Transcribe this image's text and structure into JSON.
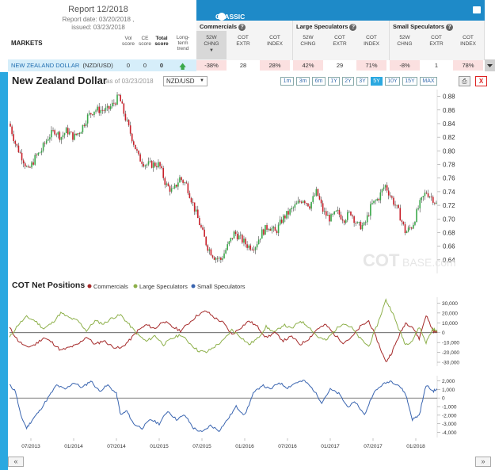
{
  "report": {
    "title": "Report 12/2018",
    "report_date": "Report date: 03/20/2018 ,",
    "issued": "issued: 03/23/2018"
  },
  "table": {
    "markets_label": "MARKETS",
    "left_columns": [
      {
        "line1": "Vol",
        "line2": "score",
        "bold": false
      },
      {
        "line1": "CE",
        "line2": "score",
        "bold": false
      },
      {
        "line1": "Total",
        "line2": "score",
        "bold": true
      },
      {
        "line1": "Long-",
        "line2": "term",
        "line3": "trend",
        "bold": false
      }
    ],
    "header_title": "CLASSIC DATA – FUTURES ONLY",
    "groups": [
      {
        "label": "Commercials",
        "columns": [
          {
            "line1": "52W",
            "line2": "CHNG"
          },
          {
            "line1": "COT",
            "line2": "EXTR"
          },
          {
            "line1": "COT",
            "line2": "INDEX"
          }
        ]
      },
      {
        "label": "Large Speculators",
        "columns": [
          {
            "line1": "52W",
            "line2": "CHNG"
          },
          {
            "line1": "COT",
            "line2": "EXTR"
          },
          {
            "line1": "COT",
            "line2": "INDEX"
          }
        ]
      },
      {
        "label": "Small Speculators",
        "columns": [
          {
            "line1": "52W",
            "line2": "CHNG"
          },
          {
            "line1": "COT",
            "line2": "EXTR"
          },
          {
            "line1": "COT",
            "line2": "INDEX"
          }
        ]
      }
    ],
    "row": {
      "name": "NEW ZEALAND DOLLAR",
      "symbol": "(NZD/USD)",
      "vol_score": "0",
      "ce_score": "0",
      "total_score": "0",
      "values": [
        "-38%",
        "28",
        "28%",
        "42%",
        "29",
        "71%",
        "-8%",
        "1",
        "78%"
      ]
    }
  },
  "chart_header": {
    "title": "New Zealand Dollar",
    "as_of": "as of 03/23/2018",
    "pair": "NZD/USD",
    "ranges": [
      "1m",
      "3m",
      "6m",
      "1Y",
      "2Y",
      "3Y",
      "5Y",
      "10Y",
      "15Y",
      "MAX"
    ],
    "active_range": "5Y",
    "close_label": "X"
  },
  "watermark": {
    "bold": "COT",
    "light": "BASE",
    "suffix": ".com"
  },
  "cot_title": "COT Net Positions",
  "legend": [
    "Commercials",
    "Large Speculators",
    "Small Speculators"
  ],
  "colors": {
    "up": "#3aa84a",
    "down": "#c8202a",
    "commercials": "#a52a2a",
    "large": "#8db04a",
    "small": "#3a65b0",
    "accent": "#2aa8e0"
  },
  "nav": {
    "prev": "«",
    "next": "»"
  },
  "chart_data": [
    {
      "type": "candlestick",
      "title": "New Zealand Dollar",
      "x_labels": [
        "07/2013",
        "01/2014",
        "07/2014",
        "01/2015",
        "07/2015",
        "01/2016",
        "07/2016",
        "01/2017",
        "07/2017",
        "01/2018"
      ],
      "x_range": [
        2013.25,
        2018.25
      ],
      "ylim": [
        0.62,
        0.89
      ],
      "yticks": [
        0.64,
        0.66,
        0.68,
        0.7,
        0.72,
        0.74,
        0.76,
        0.78,
        0.8,
        0.82,
        0.84,
        0.86,
        0.88
      ],
      "close_series": [
        [
          2013.25,
          0.84
        ],
        [
          2013.32,
          0.81
        ],
        [
          2013.4,
          0.79
        ],
        [
          2013.47,
          0.77
        ],
        [
          2013.55,
          0.79
        ],
        [
          2013.62,
          0.8
        ],
        [
          2013.7,
          0.82
        ],
        [
          2013.78,
          0.83
        ],
        [
          2013.85,
          0.82
        ],
        [
          2013.92,
          0.83
        ],
        [
          2014.0,
          0.82
        ],
        [
          2014.08,
          0.83
        ],
        [
          2014.16,
          0.85
        ],
        [
          2014.24,
          0.86
        ],
        [
          2014.32,
          0.86
        ],
        [
          2014.4,
          0.86
        ],
        [
          2014.47,
          0.87
        ],
        [
          2014.53,
          0.88
        ],
        [
          2014.6,
          0.85
        ],
        [
          2014.68,
          0.82
        ],
        [
          2014.76,
          0.79
        ],
        [
          2014.84,
          0.78
        ],
        [
          2014.92,
          0.78
        ],
        [
          2015.0,
          0.78
        ],
        [
          2015.08,
          0.75
        ],
        [
          2015.16,
          0.74
        ],
        [
          2015.24,
          0.76
        ],
        [
          2015.32,
          0.75
        ],
        [
          2015.4,
          0.72
        ],
        [
          2015.48,
          0.69
        ],
        [
          2015.56,
          0.66
        ],
        [
          2015.64,
          0.645
        ],
        [
          2015.72,
          0.64
        ],
        [
          2015.8,
          0.66
        ],
        [
          2015.88,
          0.68
        ],
        [
          2015.96,
          0.67
        ],
        [
          2016.04,
          0.66
        ],
        [
          2016.12,
          0.66
        ],
        [
          2016.2,
          0.68
        ],
        [
          2016.28,
          0.69
        ],
        [
          2016.36,
          0.68
        ],
        [
          2016.44,
          0.7
        ],
        [
          2016.52,
          0.71
        ],
        [
          2016.6,
          0.72
        ],
        [
          2016.68,
          0.73
        ],
        [
          2016.76,
          0.72
        ],
        [
          2016.84,
          0.74
        ],
        [
          2016.92,
          0.71
        ],
        [
          2017.0,
          0.7
        ],
        [
          2017.08,
          0.71
        ],
        [
          2017.16,
          0.7
        ],
        [
          2017.24,
          0.71
        ],
        [
          2017.32,
          0.69
        ],
        [
          2017.4,
          0.69
        ],
        [
          2017.48,
          0.72
        ],
        [
          2017.56,
          0.73
        ],
        [
          2017.64,
          0.75
        ],
        [
          2017.72,
          0.73
        ],
        [
          2017.8,
          0.71
        ],
        [
          2017.88,
          0.68
        ],
        [
          2017.96,
          0.69
        ],
        [
          2018.04,
          0.72
        ],
        [
          2018.12,
          0.74
        ],
        [
          2018.2,
          0.73
        ],
        [
          2018.25,
          0.72
        ]
      ]
    },
    {
      "type": "line",
      "title": "COT Net Positions",
      "ylim": [
        -34000,
        36000
      ],
      "yticks": [
        30000,
        20000,
        10000,
        0,
        -10000,
        -20000,
        -30000
      ],
      "ytick_labels": [
        "30,000",
        "20,000",
        "10,000",
        "0",
        "-10,000",
        "-20,000",
        "-30,000"
      ],
      "series": [
        {
          "name": "Commercials",
          "points": [
            [
              2013.25,
              5000
            ],
            [
              2013.35,
              -8000
            ],
            [
              2013.45,
              -15000
            ],
            [
              2013.55,
              -12000
            ],
            [
              2013.65,
              -5000
            ],
            [
              2013.75,
              -10000
            ],
            [
              2013.85,
              -18000
            ],
            [
              2013.95,
              -15000
            ],
            [
              2014.05,
              -12000
            ],
            [
              2014.15,
              -4000
            ],
            [
              2014.25,
              -12000
            ],
            [
              2014.35,
              -8000
            ],
            [
              2014.45,
              -14000
            ],
            [
              2014.55,
              -16000
            ],
            [
              2014.65,
              -8000
            ],
            [
              2014.75,
              2000
            ],
            [
              2014.85,
              8000
            ],
            [
              2014.95,
              4000
            ],
            [
              2015.05,
              12000
            ],
            [
              2015.15,
              6000
            ],
            [
              2015.25,
              2000
            ],
            [
              2015.35,
              10000
            ],
            [
              2015.45,
              18000
            ],
            [
              2015.55,
              22000
            ],
            [
              2015.65,
              15000
            ],
            [
              2015.75,
              10000
            ],
            [
              2015.85,
              -2000
            ],
            [
              2015.95,
              5000
            ],
            [
              2016.05,
              12000
            ],
            [
              2016.15,
              6000
            ],
            [
              2016.25,
              -5000
            ],
            [
              2016.35,
              0
            ],
            [
              2016.45,
              -8000
            ],
            [
              2016.55,
              -4000
            ],
            [
              2016.65,
              -12000
            ],
            [
              2016.75,
              -6000
            ],
            [
              2016.85,
              4000
            ],
            [
              2016.95,
              8000
            ],
            [
              2017.05,
              -2000
            ],
            [
              2017.15,
              -10000
            ],
            [
              2017.25,
              -5000
            ],
            [
              2017.35,
              6000
            ],
            [
              2017.45,
              12000
            ],
            [
              2017.55,
              -8000
            ],
            [
              2017.65,
              -30000
            ],
            [
              2017.72,
              -20000
            ],
            [
              2017.8,
              -4000
            ],
            [
              2017.88,
              10000
            ],
            [
              2017.96,
              6000
            ],
            [
              2018.04,
              -6000
            ],
            [
              2018.12,
              18000
            ],
            [
              2018.2,
              2000
            ],
            [
              2018.25,
              0
            ]
          ]
        },
        {
          "name": "Large Speculators",
          "points": [
            [
              2013.25,
              -5000
            ],
            [
              2013.35,
              8000
            ],
            [
              2013.45,
              16000
            ],
            [
              2013.55,
              12000
            ],
            [
              2013.65,
              4000
            ],
            [
              2013.75,
              10000
            ],
            [
              2013.85,
              20000
            ],
            [
              2013.95,
              15000
            ],
            [
              2014.05,
              12000
            ],
            [
              2014.15,
              2000
            ],
            [
              2014.25,
              12000
            ],
            [
              2014.35,
              9000
            ],
            [
              2014.45,
              15000
            ],
            [
              2014.55,
              18000
            ],
            [
              2014.65,
              8000
            ],
            [
              2014.75,
              -2000
            ],
            [
              2014.85,
              -9000
            ],
            [
              2014.95,
              -3000
            ],
            [
              2015.05,
              -12000
            ],
            [
              2015.15,
              -6000
            ],
            [
              2015.25,
              -2000
            ],
            [
              2015.35,
              -10000
            ],
            [
              2015.45,
              -18000
            ],
            [
              2015.55,
              -20000
            ],
            [
              2015.65,
              -14000
            ],
            [
              2015.75,
              -8000
            ],
            [
              2015.85,
              3000
            ],
            [
              2015.95,
              -4000
            ],
            [
              2016.05,
              -12000
            ],
            [
              2016.15,
              -6000
            ],
            [
              2016.25,
              6000
            ],
            [
              2016.35,
              0
            ],
            [
              2016.45,
              8000
            ],
            [
              2016.55,
              4000
            ],
            [
              2016.65,
              12000
            ],
            [
              2016.75,
              6000
            ],
            [
              2016.85,
              -4000
            ],
            [
              2016.95,
              -8000
            ],
            [
              2017.05,
              2000
            ],
            [
              2017.15,
              10000
            ],
            [
              2017.25,
              5000
            ],
            [
              2017.35,
              -6000
            ],
            [
              2017.45,
              -14000
            ],
            [
              2017.55,
              8000
            ],
            [
              2017.65,
              33000
            ],
            [
              2017.72,
              22000
            ],
            [
              2017.8,
              4000
            ],
            [
              2017.88,
              -12000
            ],
            [
              2017.96,
              -8000
            ],
            [
              2018.04,
              6000
            ],
            [
              2018.12,
              -10000
            ],
            [
              2018.2,
              4000
            ],
            [
              2018.25,
              1000
            ]
          ]
        },
        {
          "name": "Small Speculators",
          "points": [
            [
              2013.25,
              1500
            ],
            [
              2013.32,
              800
            ],
            [
              2013.38,
              -2000
            ],
            [
              2013.45,
              -3500
            ],
            [
              2013.52,
              -2500
            ],
            [
              2013.6,
              -1500
            ],
            [
              2013.7,
              0
            ],
            [
              2013.8,
              1500
            ],
            [
              2013.9,
              1000
            ],
            [
              2014.0,
              1800
            ],
            [
              2014.1,
              1200
            ],
            [
              2014.2,
              2000
            ],
            [
              2014.3,
              800
            ],
            [
              2014.4,
              1500
            ],
            [
              2014.5,
              500
            ],
            [
              2014.55,
              -2000
            ],
            [
              2014.62,
              -1500
            ],
            [
              2014.7,
              -3000
            ],
            [
              2014.8,
              -3500
            ],
            [
              2014.9,
              -2500
            ],
            [
              2015.0,
              -3000
            ],
            [
              2015.1,
              -1500
            ],
            [
              2015.2,
              -2500
            ],
            [
              2015.3,
              -2000
            ],
            [
              2015.4,
              -3500
            ],
            [
              2015.5,
              -4000
            ],
            [
              2015.6,
              -3200
            ],
            [
              2015.7,
              -3800
            ],
            [
              2015.8,
              -2500
            ],
            [
              2015.9,
              -1000
            ],
            [
              2016.0,
              -2000
            ],
            [
              2016.1,
              500
            ],
            [
              2016.2,
              1500
            ],
            [
              2016.3,
              1000
            ],
            [
              2016.4,
              1800
            ],
            [
              2016.5,
              1200
            ],
            [
              2016.6,
              1800
            ],
            [
              2016.7,
              2000
            ],
            [
              2016.8,
              1000
            ],
            [
              2016.9,
              -500
            ],
            [
              2017.0,
              1000
            ],
            [
              2017.1,
              500
            ],
            [
              2017.2,
              -1000
            ],
            [
              2017.3,
              -500
            ],
            [
              2017.4,
              -2000
            ],
            [
              2017.5,
              500
            ],
            [
              2017.6,
              1500
            ],
            [
              2017.7,
              2000
            ],
            [
              2017.8,
              1500
            ],
            [
              2017.88,
              500
            ],
            [
              2017.96,
              -2500
            ],
            [
              2018.04,
              -2000
            ],
            [
              2018.12,
              1500
            ],
            [
              2018.2,
              800
            ],
            [
              2018.25,
              1000
            ]
          ]
        }
      ]
    },
    {
      "type": "line",
      "title": "",
      "ylim": [
        -4600,
        2600
      ],
      "yticks": [
        2000,
        1000,
        0,
        -1000,
        -2000,
        -3000,
        -4000
      ],
      "ytick_labels": [
        "2,000",
        "1,000",
        "0",
        "-1,000",
        "-2,000",
        "-3,000",
        "-4,000"
      ],
      "series_ref": "Small Speculators"
    }
  ]
}
